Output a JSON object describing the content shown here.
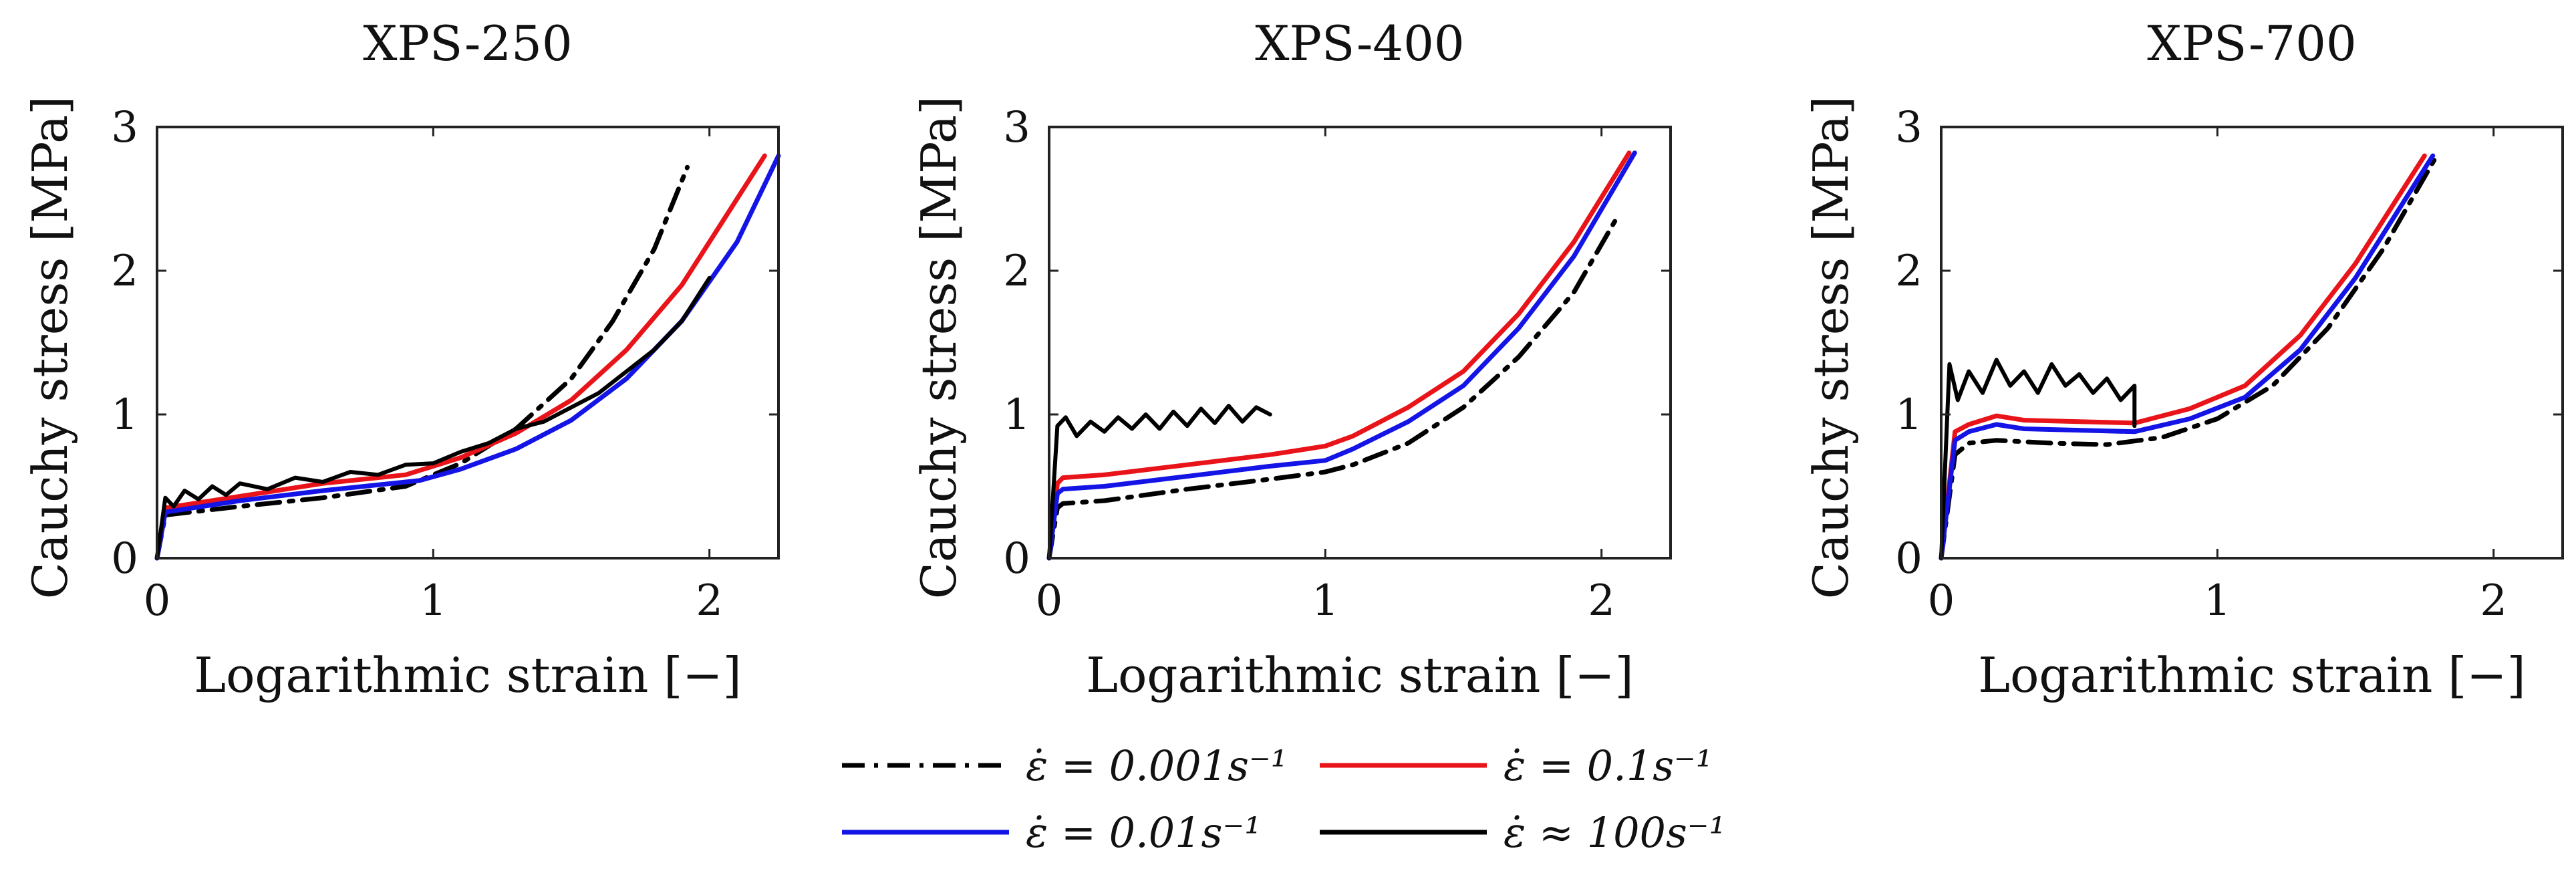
{
  "chart_data": [
    {
      "type": "line",
      "title": "XPS-250",
      "xlabel": "Logarithmic strain [−]",
      "ylabel": "Cauchy stress [MPa]",
      "xlim": [
        0,
        2.25
      ],
      "ylim": [
        0,
        3
      ],
      "xticks": [
        "0",
        "1",
        "2"
      ],
      "yticks": [
        "0",
        "1",
        "2",
        "3"
      ],
      "series": [
        {
          "name": "0.001",
          "x": [
            0,
            0.03,
            0.3,
            0.6,
            0.9,
            1.1,
            1.3,
            1.5,
            1.65,
            1.8,
            1.92
          ],
          "y": [
            0,
            0.3,
            0.36,
            0.42,
            0.5,
            0.66,
            0.9,
            1.25,
            1.65,
            2.15,
            2.72
          ]
        },
        {
          "name": "0.1",
          "x": [
            0,
            0.03,
            0.3,
            0.6,
            0.9,
            1.1,
            1.3,
            1.5,
            1.7,
            1.9,
            2.05,
            2.2
          ],
          "y": [
            0,
            0.35,
            0.43,
            0.52,
            0.58,
            0.7,
            0.87,
            1.1,
            1.45,
            1.9,
            2.35,
            2.8
          ]
        },
        {
          "name": "0.01",
          "x": [
            0,
            0.03,
            0.3,
            0.6,
            0.95,
            1.1,
            1.3,
            1.5,
            1.7,
            1.9,
            2.1,
            2.25
          ],
          "y": [
            0,
            0.32,
            0.4,
            0.47,
            0.54,
            0.62,
            0.76,
            0.96,
            1.25,
            1.65,
            2.2,
            2.8
          ]
        },
        {
          "name": "100",
          "x": [
            0,
            0.03,
            0.06,
            0.1,
            0.15,
            0.2,
            0.25,
            0.3,
            0.4,
            0.5,
            0.6,
            0.7,
            0.8,
            0.9,
            1.0,
            1.1,
            1.2,
            1.3,
            1.4,
            1.5,
            1.6,
            1.7,
            1.8,
            1.9,
            2.0
          ],
          "y": [
            0,
            0.42,
            0.36,
            0.47,
            0.41,
            0.5,
            0.44,
            0.52,
            0.48,
            0.56,
            0.53,
            0.6,
            0.58,
            0.65,
            0.66,
            0.74,
            0.8,
            0.9,
            0.95,
            1.05,
            1.15,
            1.3,
            1.45,
            1.65,
            1.95
          ],
          "noisy": true
        }
      ]
    },
    {
      "type": "line",
      "title": "XPS-400",
      "xlabel": "Logarithmic strain [−]",
      "ylabel": "Cauchy stress [MPa]",
      "xlim": [
        0,
        2.25
      ],
      "ylim": [
        0,
        3
      ],
      "xticks": [
        "0",
        "1",
        "2"
      ],
      "yticks": [
        "0",
        "1",
        "2",
        "3"
      ],
      "series": [
        {
          "name": "0.001",
          "x": [
            0,
            0.03,
            0.05,
            0.2,
            0.5,
            0.8,
            1.0,
            1.1,
            1.3,
            1.5,
            1.7,
            1.9,
            2.05
          ],
          "y": [
            0,
            0.35,
            0.38,
            0.4,
            0.48,
            0.55,
            0.6,
            0.65,
            0.8,
            1.05,
            1.4,
            1.85,
            2.35
          ]
        },
        {
          "name": "0.1",
          "x": [
            0,
            0.03,
            0.05,
            0.2,
            0.5,
            0.8,
            1.0,
            1.1,
            1.3,
            1.5,
            1.7,
            1.9,
            2.1
          ],
          "y": [
            0,
            0.52,
            0.56,
            0.58,
            0.65,
            0.72,
            0.78,
            0.85,
            1.05,
            1.3,
            1.7,
            2.2,
            2.82
          ]
        },
        {
          "name": "0.01",
          "x": [
            0,
            0.03,
            0.05,
            0.2,
            0.5,
            0.8,
            1.0,
            1.1,
            1.3,
            1.5,
            1.7,
            1.9,
            2.12
          ],
          "y": [
            0,
            0.45,
            0.48,
            0.5,
            0.57,
            0.64,
            0.68,
            0.76,
            0.95,
            1.2,
            1.6,
            2.1,
            2.82
          ]
        },
        {
          "name": "100",
          "x": [
            0,
            0.03,
            0.06,
            0.1,
            0.15,
            0.2,
            0.25,
            0.3,
            0.35,
            0.4,
            0.45,
            0.5,
            0.55,
            0.6,
            0.65,
            0.7,
            0.75,
            0.8
          ],
          "y": [
            0,
            0.92,
            0.98,
            0.85,
            0.95,
            0.88,
            0.98,
            0.9,
            1.0,
            0.9,
            1.02,
            0.92,
            1.04,
            0.94,
            1.06,
            0.95,
            1.05,
            1.0
          ],
          "noisy": true
        }
      ]
    },
    {
      "type": "line",
      "title": "XPS-700",
      "xlabel": "Logarithmic strain [−]",
      "ylabel": "Cauchy stress [MPa]",
      "xlim": [
        0,
        2.25
      ],
      "ylim": [
        0,
        3
      ],
      "xticks": [
        "0",
        "1",
        "2"
      ],
      "yticks": [
        "0",
        "1",
        "2",
        "3"
      ],
      "series": [
        {
          "name": "0.001",
          "x": [
            0,
            0.05,
            0.1,
            0.2,
            0.4,
            0.6,
            0.8,
            1.0,
            1.2,
            1.4,
            1.6,
            1.8
          ],
          "y": [
            0,
            0.72,
            0.8,
            0.82,
            0.8,
            0.79,
            0.84,
            0.97,
            1.2,
            1.6,
            2.15,
            2.82
          ]
        },
        {
          "name": "0.1",
          "x": [
            0,
            0.05,
            0.1,
            0.2,
            0.3,
            0.5,
            0.7,
            0.9,
            1.1,
            1.3,
            1.5,
            1.75
          ],
          "y": [
            0,
            0.88,
            0.93,
            0.99,
            0.96,
            0.95,
            0.94,
            1.04,
            1.2,
            1.55,
            2.05,
            2.8
          ]
        },
        {
          "name": "0.01",
          "x": [
            0,
            0.05,
            0.1,
            0.2,
            0.3,
            0.5,
            0.7,
            0.9,
            1.1,
            1.3,
            1.5,
            1.78
          ],
          "y": [
            0,
            0.82,
            0.88,
            0.93,
            0.9,
            0.89,
            0.88,
            0.97,
            1.12,
            1.45,
            1.95,
            2.8
          ]
        },
        {
          "name": "100",
          "x": [
            0,
            0.03,
            0.06,
            0.1,
            0.15,
            0.2,
            0.25,
            0.3,
            0.35,
            0.4,
            0.45,
            0.5,
            0.55,
            0.6,
            0.65,
            0.7,
            0.7
          ],
          "y": [
            0,
            1.35,
            1.1,
            1.3,
            1.15,
            1.38,
            1.2,
            1.3,
            1.15,
            1.35,
            1.2,
            1.28,
            1.15,
            1.25,
            1.1,
            1.2,
            0.92
          ],
          "noisy": true
        }
      ]
    }
  ],
  "legend": {
    "entries": [
      {
        "series": "0.001",
        "label": "ε̇ = 0.001s⁻¹",
        "color": "#000000",
        "dash": "dashdot"
      },
      {
        "series": "0.1",
        "label": "ε̇ = 0.1s⁻¹",
        "color": "#e8141a",
        "dash": "solid"
      },
      {
        "series": "0.01",
        "label": "ε̇ = 0.01s⁻¹",
        "color": "#1414e6",
        "dash": "solid"
      },
      {
        "series": "100",
        "label": "ε̇ ≈ 100s⁻¹",
        "color": "#000000",
        "dash": "solid"
      }
    ]
  },
  "colors": {
    "0.001": "#000000",
    "0.1": "#e8141a",
    "0.01": "#1414e6",
    "100": "#000000"
  }
}
